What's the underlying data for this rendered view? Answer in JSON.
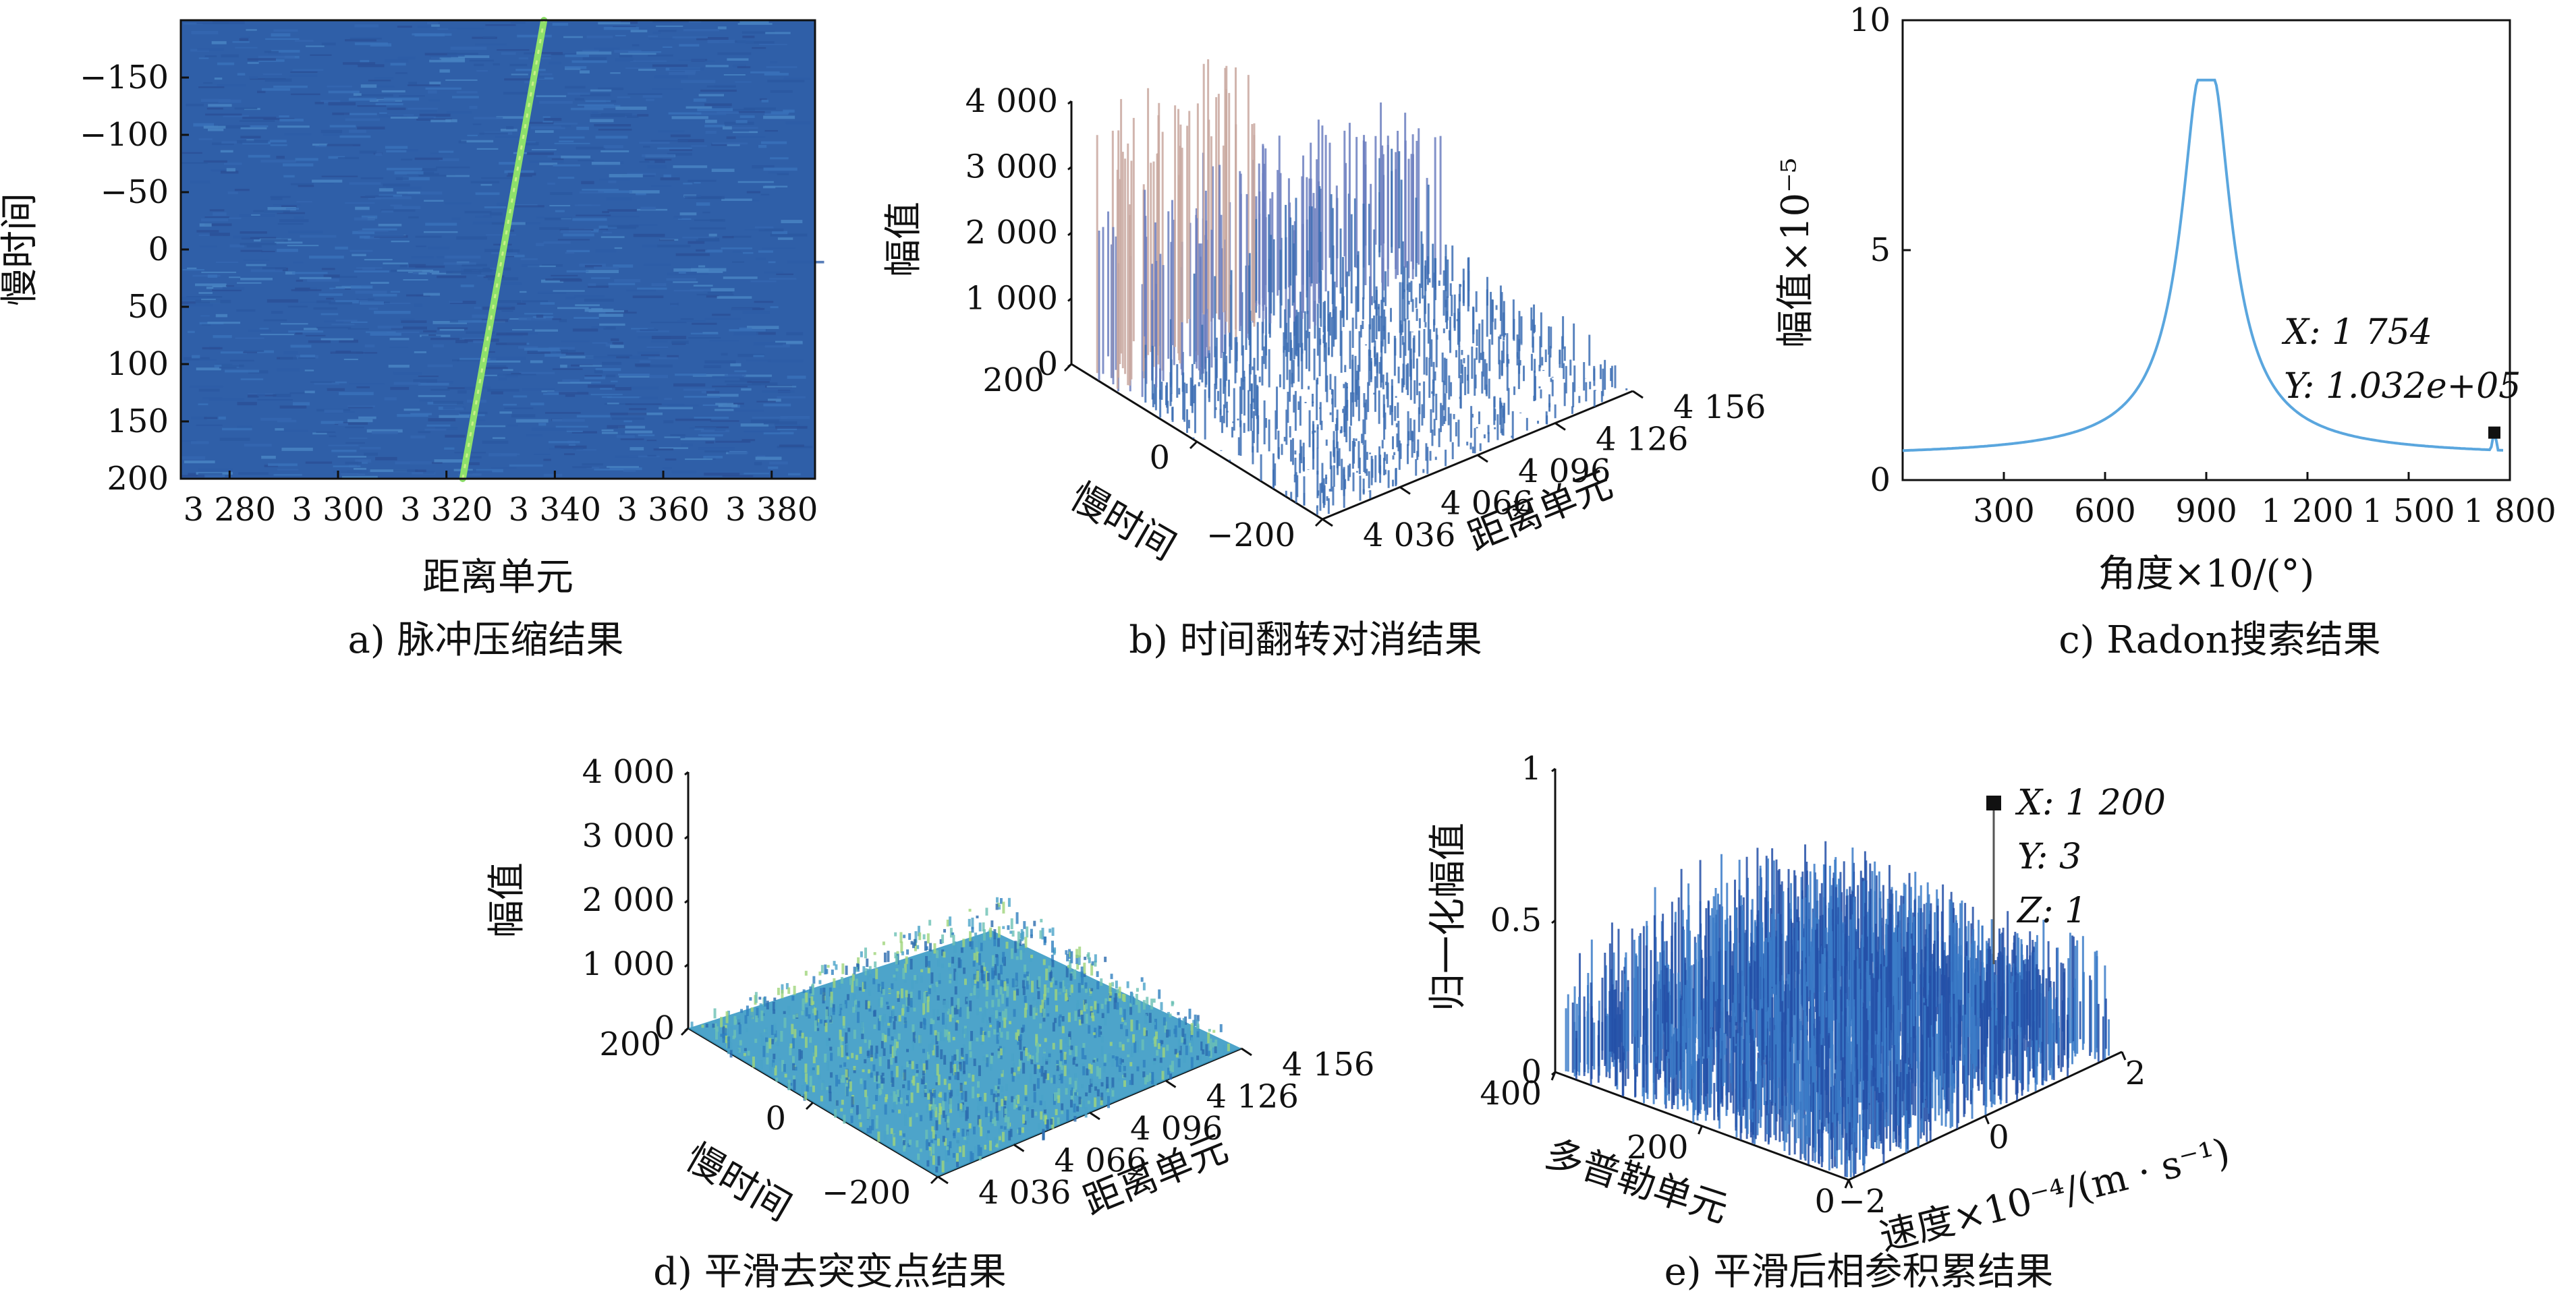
{
  "chart_data": [
    {
      "id": "a",
      "type": "heatmap",
      "caption": "a) 脉冲压缩结果",
      "xlabel": "距离单元",
      "ylabel": "慢时间",
      "x_ticks": [
        "3 280",
        "3 300",
        "3 320",
        "3 340",
        "3 360",
        "3 380"
      ],
      "x_tick_values": [
        3280,
        3300,
        3320,
        3340,
        3360,
        3380
      ],
      "y_ticks": [
        "−150",
        "−100",
        "−50",
        "0",
        "50",
        "100",
        "150",
        "200"
      ],
      "y_tick_values": [
        -150,
        -100,
        -50,
        0,
        50,
        100,
        150,
        200
      ],
      "xlim": [
        3271,
        3388
      ],
      "ylim": [
        -200,
        200
      ],
      "trace": {
        "from": [
          3323,
          200
        ],
        "to": [
          3338,
          -200
        ]
      },
      "colors": {
        "background": "#2f5fa8",
        "trace": "#8ee06a"
      }
    },
    {
      "id": "b",
      "type": "surface",
      "caption": "b) 时间翻转对消结果",
      "xlabel": "距离单元",
      "ylabel": "慢时间",
      "zlabel": "幅值",
      "x_ticks": [
        "4 036",
        "4 066",
        "4 096",
        "4 126",
        "4 156"
      ],
      "y_ticks": [
        "200",
        "0",
        "−200"
      ],
      "z_ticks": [
        "0",
        "1 000",
        "2 000",
        "3 000",
        "4 000"
      ],
      "zlim": [
        0,
        4000
      ]
    },
    {
      "id": "c",
      "type": "line",
      "caption": "c) Radon搜索结果",
      "xlabel": "角度×10/(°)",
      "ylabel": "幅值×10⁻⁵",
      "x_ticks": [
        "300",
        "600",
        "900",
        "1 200",
        "1 500",
        "1 800"
      ],
      "x_tick_values": [
        300,
        600,
        900,
        1200,
        1500,
        1800
      ],
      "y_ticks": [
        "0",
        "5",
        "10"
      ],
      "y_tick_values": [
        0,
        5,
        10
      ],
      "xlim": [
        0,
        1800
      ],
      "ylim": [
        0,
        10
      ],
      "peak": {
        "x": 900,
        "y": 8.7
      },
      "baseline": 0.5,
      "marker": {
        "x": 1754,
        "y": 1.032,
        "label_x": "X: 1 754",
        "label_y": "Y: 1.032e+05"
      },
      "colors": {
        "line": "#5aa6de"
      }
    },
    {
      "id": "d",
      "type": "surface",
      "caption": "d) 平滑去突变点结果",
      "xlabel": "距离单元",
      "ylabel": "慢时间",
      "zlabel": "幅值",
      "x_ticks": [
        "4 036",
        "4 066",
        "4 096",
        "4 126",
        "4 156"
      ],
      "y_ticks": [
        "200",
        "0",
        "−200"
      ],
      "z_ticks": [
        "0",
        "1 000",
        "2 000",
        "3 000",
        "4 000"
      ],
      "zlim": [
        0,
        4000
      ]
    },
    {
      "id": "e",
      "type": "surface",
      "caption": "e) 平滑后相参积累结果",
      "xlabel": "速度×10⁻⁴/(m · s⁻¹)",
      "ylabel": "多普勒单元",
      "zlabel": "归一化幅值",
      "x_ticks": [
        "−2",
        "0",
        "2"
      ],
      "y_ticks": [
        "400",
        "200",
        "0"
      ],
      "z_ticks": [
        "0",
        "0.5",
        "1"
      ],
      "zlim": [
        0,
        1
      ],
      "marker": {
        "label_x": "X: 1 200",
        "label_y": "Y: 3",
        "label_z": "Z: 1"
      }
    }
  ]
}
